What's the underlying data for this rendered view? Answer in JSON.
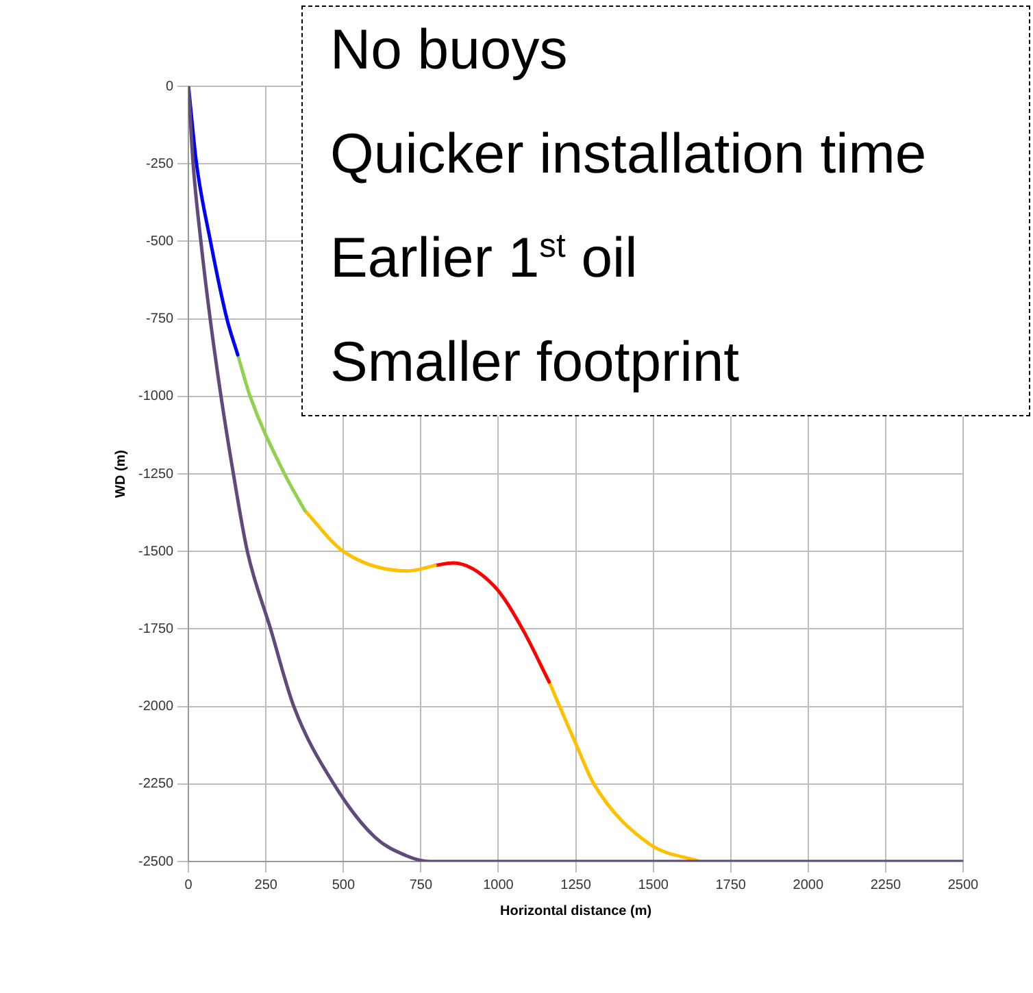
{
  "chart_data": {
    "type": "line",
    "xlabel": "Horizontal distance (m)",
    "ylabel": "WD (m)",
    "xlim": [
      0,
      2500
    ],
    "xticks": [
      0,
      250,
      500,
      750,
      1000,
      1250,
      1500,
      1750,
      2000,
      2250,
      2500
    ],
    "ylim": [
      -2500,
      0
    ],
    "yticks": [
      -2500,
      -2250,
      -2000,
      -1750,
      -1500,
      -1250,
      -1000,
      -750,
      -500,
      -250,
      0
    ],
    "grid": true,
    "legend": false,
    "marker": "none",
    "line_style": "solid",
    "series": [
      {
        "color": "#604a7b",
        "x": [
          0,
          15,
          40,
          70,
          105,
          145,
          190,
          265,
          340,
          469,
          600,
          700,
          779,
          2500
        ],
        "values": [
          0,
          -250,
          -500,
          -750,
          -1000,
          -1250,
          -1500,
          -1750,
          -2000,
          -2250,
          -2420,
          -2480,
          -2500,
          -2500
        ]
      },
      {
        "color": "#0000ff",
        "x": [
          0,
          26,
          71,
          124,
          159
        ],
        "values": [
          0,
          -250,
          -500,
          -750,
          -866
        ]
      },
      {
        "color": "#92d050",
        "x": [
          159,
          199,
          310,
          376
        ],
        "values": [
          -866,
          -1000,
          -1250,
          -1369
        ]
      },
      {
        "color": "#ffc000",
        "x": [
          376,
          500,
          708,
          796
        ],
        "values": [
          -1369,
          -1500,
          -1563,
          -1545
        ]
      },
      {
        "color": "#ff0000",
        "x": [
          796,
          854,
          987,
          1075,
          1164
        ],
        "values": [
          -1545,
          -1537,
          -1612,
          -1745,
          -1921
        ]
      },
      {
        "color": "#ffc000",
        "x": [
          1164,
          1252,
          1310,
          1487,
          1650
        ],
        "values": [
          -1921,
          -2125,
          -2253,
          -2443,
          -2500
        ]
      }
    ],
    "annotations": [
      "No buoys",
      "Quicker installation time",
      "Earlier 1$^{st}$ oil",
      "Smaller footprint"
    ]
  }
}
